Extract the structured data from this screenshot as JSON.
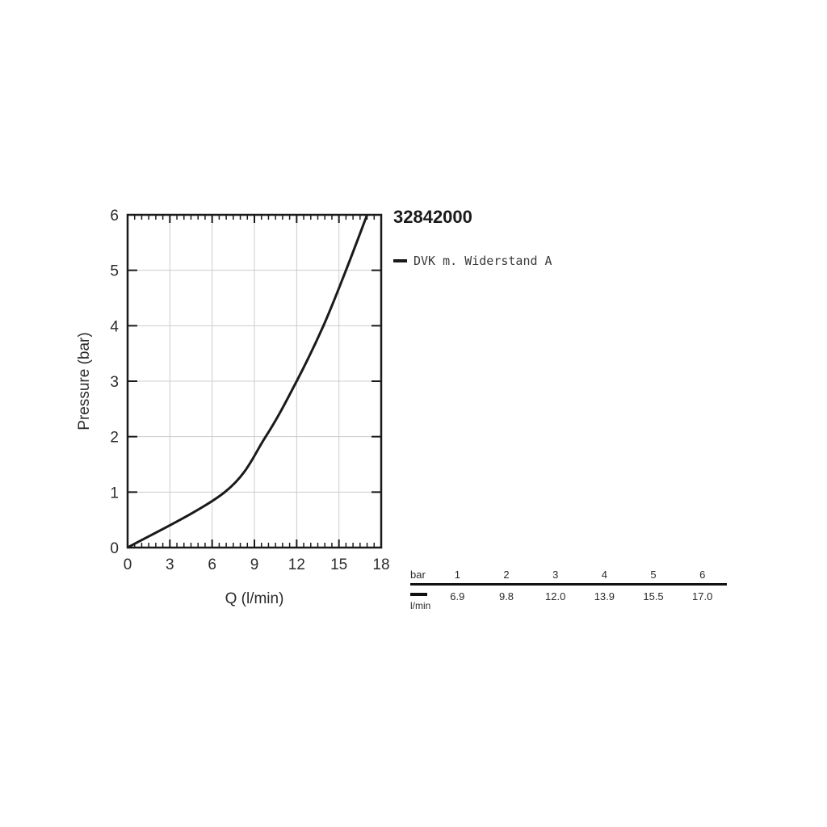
{
  "title": "32842000",
  "legend": {
    "label": "DVK m. Widerstand A",
    "marker_color": "#1a1a1a"
  },
  "chart_data": {
    "type": "line",
    "title": "32842000",
    "xlabel": "Q (l/min)",
    "ylabel": "Pressure (bar)",
    "xlim": [
      0,
      18
    ],
    "ylim": [
      0,
      6
    ],
    "x_major_ticks": [
      0,
      3,
      6,
      9,
      12,
      15,
      18
    ],
    "x_minor_step": 0.5,
    "y_major_ticks": [
      0,
      1,
      2,
      3,
      4,
      5,
      6
    ],
    "grid": true,
    "legend_position": "top-right",
    "series": [
      {
        "name": "DVK m. Widerstand A",
        "color": "#1a1a1a",
        "points": [
          [
            0,
            0
          ],
          [
            6.9,
            1
          ],
          [
            9.8,
            2
          ],
          [
            12.0,
            3
          ],
          [
            13.9,
            4
          ],
          [
            15.5,
            5
          ],
          [
            17.0,
            6
          ]
        ]
      }
    ]
  },
  "table": {
    "header_label": "bar",
    "header_values": [
      "1",
      "2",
      "3",
      "4",
      "5",
      "6"
    ],
    "row_unit": "l/min",
    "row_values": [
      "6.9",
      "9.8",
      "12.0",
      "13.9",
      "15.5",
      "17.0"
    ]
  },
  "colors": {
    "grid": "#cccccc",
    "axis": "#1a1a1a",
    "text": "#2b2b2b",
    "curve": "#1a1a1a"
  }
}
